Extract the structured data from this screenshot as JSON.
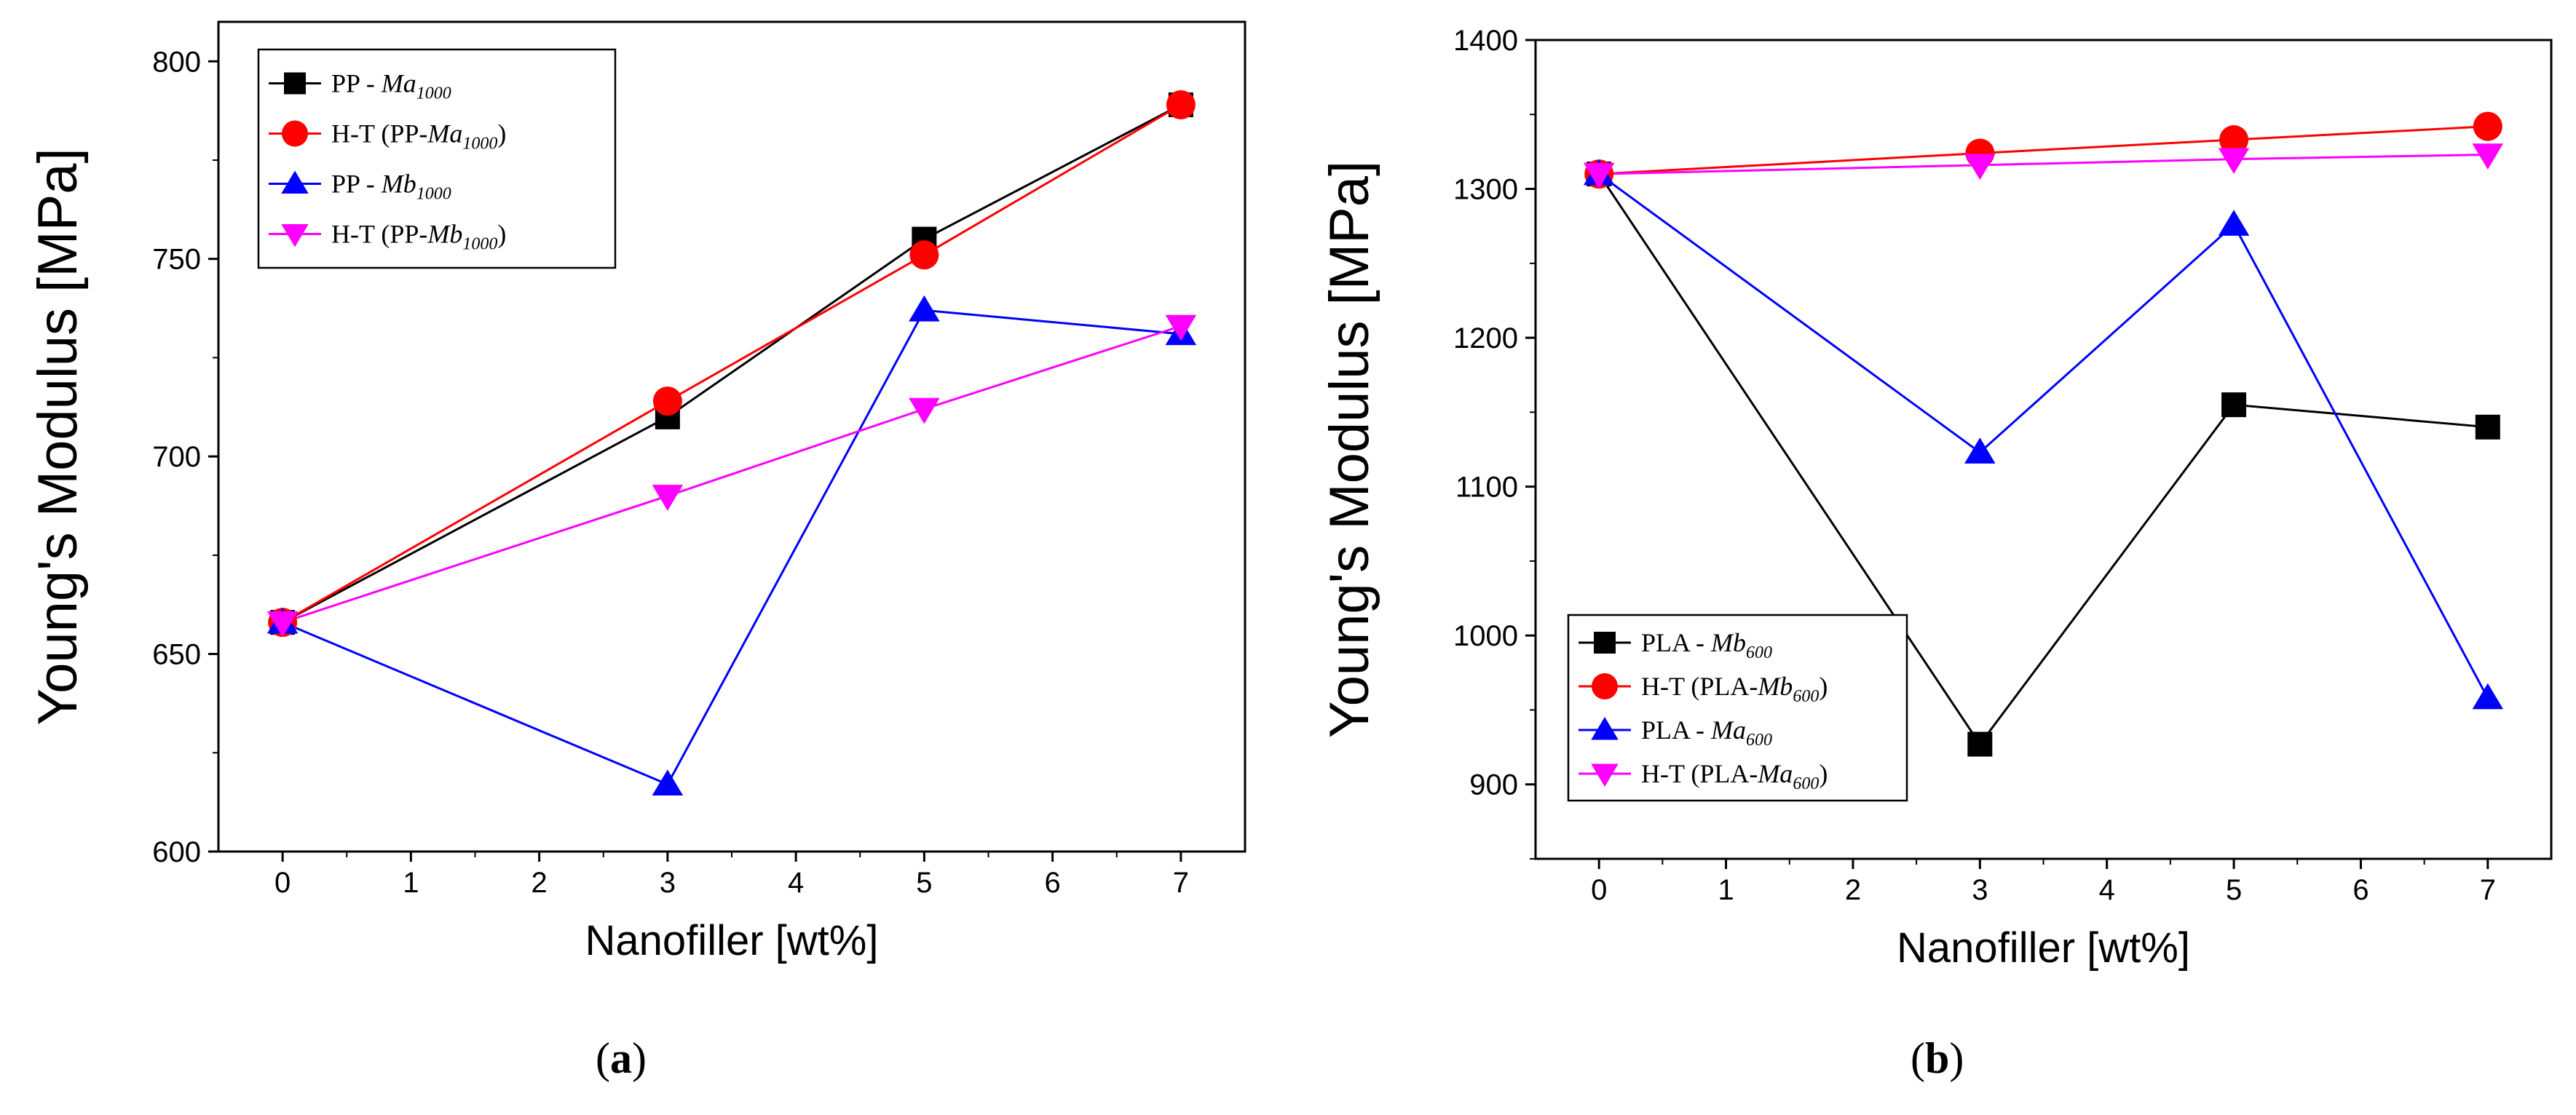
{
  "chart_data": [
    {
      "type": "line",
      "panel_label": "a",
      "xlabel": "Nanofiller [wt%]",
      "ylabel": "Young's Modulus [MPa]",
      "xlim": [
        -0.5,
        7.5
      ],
      "ylim": [
        600,
        810
      ],
      "xticks": [
        0,
        1,
        2,
        3,
        4,
        5,
        6,
        7
      ],
      "yticks": [
        600,
        650,
        700,
        750,
        800
      ],
      "legend_position": "top-left",
      "series": [
        {
          "name": "PP - Ma1000",
          "label_prefix": "PP - ",
          "label_italic": "Ma",
          "label_sub": "1000",
          "label_suffix": "",
          "color": "#000000",
          "marker": "square",
          "x": [
            0,
            3,
            5,
            7
          ],
          "values": [
            658,
            710,
            755,
            789
          ]
        },
        {
          "name": "H-T (PP-Ma1000)",
          "label_prefix": "H-T (PP-",
          "label_italic": "Ma",
          "label_sub": "1000",
          "label_suffix": ")",
          "color": "#ff0000",
          "marker": "circle",
          "x": [
            0,
            3,
            5,
            7
          ],
          "values": [
            658,
            714,
            751,
            789
          ]
        },
        {
          "name": "PP - Mb1000",
          "label_prefix": "PP - ",
          "label_italic": "Mb",
          "label_sub": "1000",
          "label_suffix": "",
          "color": "#0000ff",
          "marker": "triangle-up",
          "x": [
            0,
            3,
            5,
            7
          ],
          "values": [
            658,
            617,
            737,
            731
          ]
        },
        {
          "name": "H-T (PP-Mb1000)",
          "label_prefix": "H-T (PP-",
          "label_italic": "Mb",
          "label_sub": "1000",
          "label_suffix": ")",
          "color": "#ff00ff",
          "marker": "triangle-down",
          "x": [
            0,
            3,
            5,
            7
          ],
          "values": [
            658,
            690,
            712,
            733
          ]
        }
      ]
    },
    {
      "type": "line",
      "panel_label": "b",
      "xlabel": "Nanofiller [wt%]",
      "ylabel": "Young's Modulus [MPa]",
      "xlim": [
        -0.5,
        7.5
      ],
      "ylim": [
        850,
        1400
      ],
      "xticks": [
        0,
        1,
        2,
        3,
        4,
        5,
        6,
        7
      ],
      "yticks": [
        900,
        1000,
        1100,
        1200,
        1300,
        1400
      ],
      "legend_position": "bottom-left",
      "series": [
        {
          "name": "PLA - Mb600",
          "label_prefix": "PLA - ",
          "label_italic": "Mb",
          "label_sub": "600",
          "label_suffix": "",
          "color": "#000000",
          "marker": "square",
          "x": [
            0,
            3,
            5,
            7
          ],
          "values": [
            1310,
            927,
            1155,
            1140
          ]
        },
        {
          "name": "H-T (PLA-Mb600)",
          "label_prefix": "H-T (PLA-",
          "label_italic": "Mb",
          "label_sub": "600",
          "label_suffix": ")",
          "color": "#ff0000",
          "marker": "circle",
          "x": [
            0,
            3,
            5,
            7
          ],
          "values": [
            1310,
            1324,
            1333,
            1342
          ]
        },
        {
          "name": "PLA - Ma600",
          "label_prefix": "PLA - ",
          "label_italic": "Ma",
          "label_sub": "600",
          "label_suffix": "",
          "color": "#0000ff",
          "marker": "triangle-up",
          "x": [
            0,
            3,
            5,
            7
          ],
          "values": [
            1310,
            1123,
            1276,
            958
          ]
        },
        {
          "name": "H-T (PLA-Ma600)",
          "label_prefix": "H-T (PLA-",
          "label_italic": "Ma",
          "label_sub": "600",
          "label_suffix": ")",
          "color": "#ff00ff",
          "marker": "triangle-down",
          "x": [
            0,
            3,
            5,
            7
          ],
          "values": [
            1310,
            1316,
            1320,
            1323
          ]
        }
      ]
    }
  ]
}
